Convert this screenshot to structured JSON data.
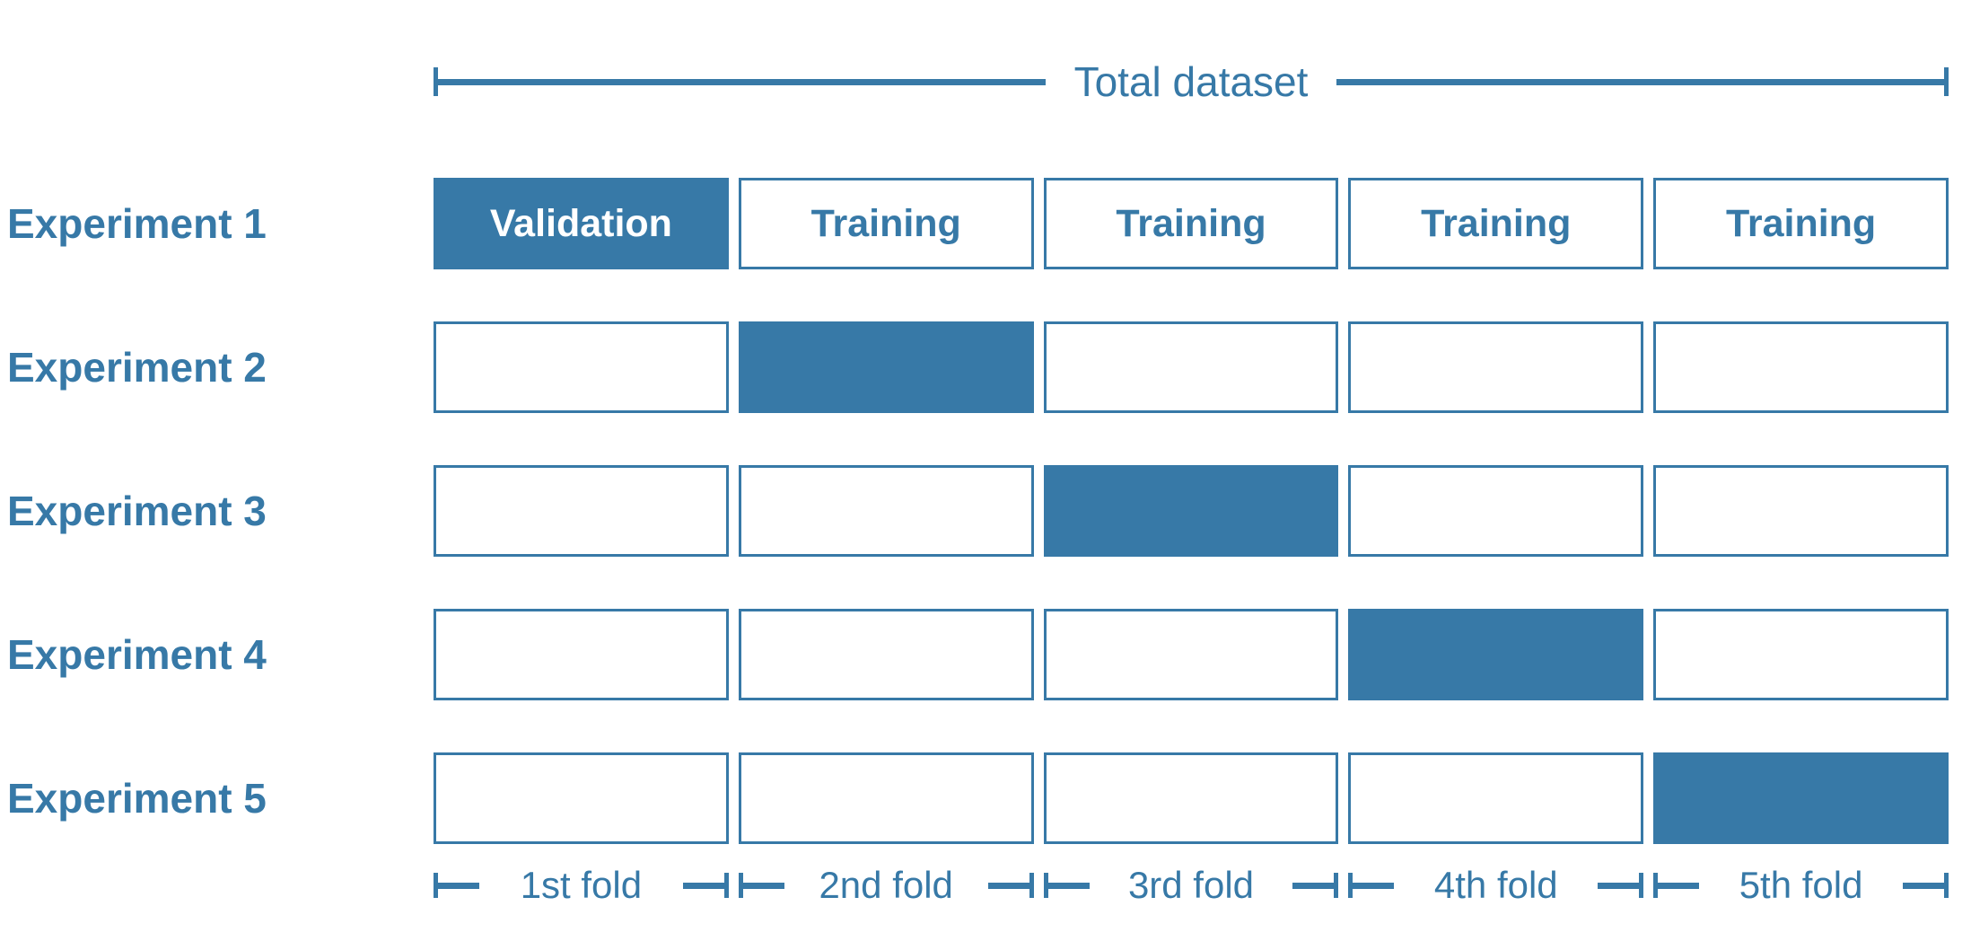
{
  "title": "K-fold cross-validation diagram",
  "colors": {
    "accent": "#3779A7",
    "text_on_fill": "#FFFFFF",
    "background": "#FFFFFF"
  },
  "header": {
    "total_dataset_label": "Total dataset"
  },
  "experiments": [
    {
      "label": "Experiment 1",
      "validation_fold": 1,
      "cells": [
        "Validation",
        "Training",
        "Training",
        "Training",
        "Training"
      ]
    },
    {
      "label": "Experiment 2",
      "validation_fold": 2,
      "cells": [
        "",
        "",
        "",
        "",
        ""
      ]
    },
    {
      "label": "Experiment 3",
      "validation_fold": 3,
      "cells": [
        "",
        "",
        "",
        "",
        ""
      ]
    },
    {
      "label": "Experiment 4",
      "validation_fold": 4,
      "cells": [
        "",
        "",
        "",
        "",
        ""
      ]
    },
    {
      "label": "Experiment 5",
      "validation_fold": 5,
      "cells": [
        "",
        "",
        "",
        "",
        ""
      ]
    }
  ],
  "folds": [
    "1st fold",
    "2nd fold",
    "3rd fold",
    "4th fold",
    "5th fold"
  ]
}
